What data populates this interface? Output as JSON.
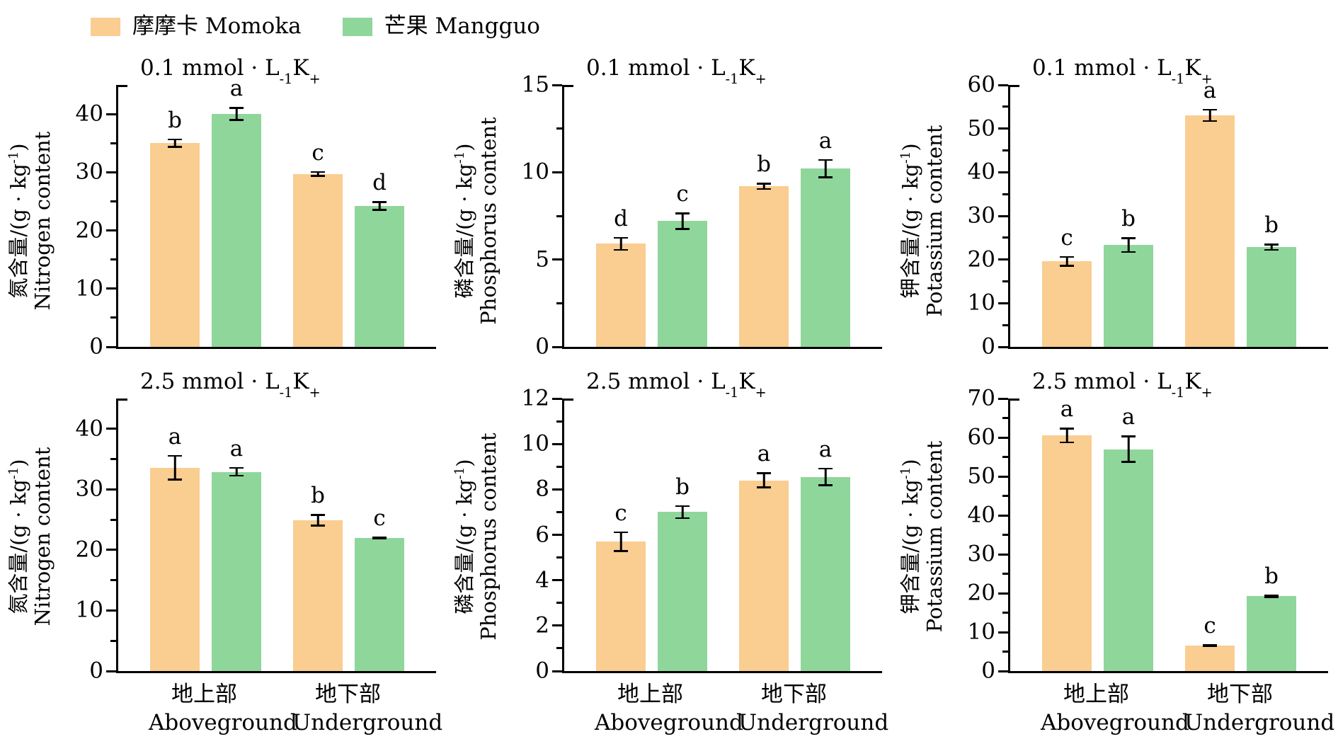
{
  "legend": {
    "items": [
      {
        "key": "momoka",
        "label": "摩摩卡 Momoka",
        "color": "#FACD91"
      },
      {
        "key": "mangguo",
        "label": "芒果 Mangguo",
        "color": "#8FD69B"
      }
    ]
  },
  "colors": {
    "momoka": "#FACD91",
    "mangguo": "#8FD69B",
    "axis": "#000000"
  },
  "chart_data": {
    "type": "bar",
    "grid": {
      "rows": 2,
      "cols": 3
    },
    "categories": [
      {
        "key": "aboveground",
        "zh": "地上部",
        "en": "Aboveground"
      },
      {
        "key": "underground",
        "zh": "地下部",
        "en": "Underground"
      }
    ],
    "panels": [
      {
        "id": "nitrogen-0.1",
        "title": {
          "base": "0.1 mmol · L",
          "sup1": "-1",
          "mid": " K",
          "sup2": "+"
        },
        "ylabel": {
          "zh_base": "氮含量/(g · kg",
          "zh_sup": "-1",
          "zh_end": ")",
          "en": "Nitrogen content"
        },
        "ylim": [
          0,
          45
        ],
        "yticks": [
          0,
          10,
          20,
          30,
          40
        ],
        "yminor_step": 5,
        "series": [
          {
            "key": "momoka",
            "name": "摩摩卡 Momoka",
            "values": [
              35.0,
              29.7
            ],
            "errors": [
              0.8,
              0.5
            ],
            "letters": [
              "b",
              "c"
            ]
          },
          {
            "key": "mangguo",
            "name": "芒果 Mangguo",
            "values": [
              40.0,
              24.2
            ],
            "errors": [
              1.2,
              0.8
            ],
            "letters": [
              "a",
              "d"
            ]
          }
        ]
      },
      {
        "id": "phosphorus-0.1",
        "title": {
          "base": "0.1 mmol · L",
          "sup1": "-1",
          "mid": " K",
          "sup2": "+"
        },
        "ylabel": {
          "zh_base": "磷含量/(g · kg",
          "zh_sup": "-1",
          "zh_end": ")",
          "en": "Phosphorus content"
        },
        "ylim": [
          0,
          15
        ],
        "yticks": [
          0,
          5,
          10,
          15
        ],
        "yminor_step": 2.5,
        "series": [
          {
            "key": "momoka",
            "name": "摩摩卡 Momoka",
            "values": [
              5.9,
              9.2
            ],
            "errors": [
              0.4,
              0.2
            ],
            "letters": [
              "d",
              "b"
            ]
          },
          {
            "key": "mangguo",
            "name": "芒果 Mangguo",
            "values": [
              7.2,
              10.2
            ],
            "errors": [
              0.5,
              0.55
            ],
            "letters": [
              "c",
              "a"
            ]
          }
        ]
      },
      {
        "id": "potassium-0.1",
        "title": {
          "base": "0.1 mmol · L",
          "sup1": "-1",
          "mid": " K",
          "sup2": "+"
        },
        "ylabel": {
          "zh_base": "钾含量/(g · kg",
          "zh_sup": "-1",
          "zh_end": ")",
          "en": "Potassium content"
        },
        "ylim": [
          0,
          60
        ],
        "yticks": [
          0,
          10,
          20,
          30,
          40,
          50,
          60
        ],
        "yminor_step": 5,
        "series": [
          {
            "key": "momoka",
            "name": "摩摩卡 Momoka",
            "values": [
              19.6,
              53.0
            ],
            "errors": [
              1.2,
              1.5
            ],
            "letters": [
              "c",
              "a"
            ]
          },
          {
            "key": "mangguo",
            "name": "芒果 Mangguo",
            "values": [
              23.3,
              22.8
            ],
            "errors": [
              1.8,
              0.8
            ],
            "letters": [
              "b",
              "b"
            ]
          }
        ]
      },
      {
        "id": "nitrogen-2.5",
        "title": {
          "base": "2.5 mmol · L",
          "sup1": "-1",
          "mid": " K",
          "sup2": "+"
        },
        "ylabel": {
          "zh_base": "氮含量/(g · kg",
          "zh_sup": "-1",
          "zh_end": ")",
          "en": "Nitrogen content"
        },
        "ylim": [
          0,
          45
        ],
        "yticks": [
          0,
          10,
          20,
          30,
          40
        ],
        "yminor_step": 5,
        "series": [
          {
            "key": "momoka",
            "name": "摩摩卡 Momoka",
            "values": [
              33.6,
              24.9
            ],
            "errors": [
              2.1,
              1.0
            ],
            "letters": [
              "a",
              "b"
            ]
          },
          {
            "key": "mangguo",
            "name": "芒果 Mangguo",
            "values": [
              32.9,
              22.0
            ],
            "errors": [
              0.8,
              0.2
            ],
            "letters": [
              "a",
              "c"
            ]
          }
        ]
      },
      {
        "id": "phosphorus-2.5",
        "title": {
          "base": "2.5 mmol · L",
          "sup1": "-1",
          "mid": " K",
          "sup2": "+"
        },
        "ylabel": {
          "zh_base": "磷含量/(g · kg",
          "zh_sup": "-1",
          "zh_end": ")",
          "en": "Phosphorus content"
        },
        "ylim": [
          0,
          12
        ],
        "yticks": [
          0,
          2,
          4,
          6,
          8,
          10,
          12
        ],
        "yminor_step": 1,
        "series": [
          {
            "key": "momoka",
            "name": "摩摩卡 Momoka",
            "values": [
              5.7,
              8.4
            ],
            "errors": [
              0.45,
              0.35
            ],
            "letters": [
              "c",
              "a"
            ]
          },
          {
            "key": "mangguo",
            "name": "芒果 Mangguo",
            "values": [
              7.0,
              8.55
            ],
            "errors": [
              0.3,
              0.4
            ],
            "letters": [
              "b",
              "a"
            ]
          }
        ]
      },
      {
        "id": "potassium-2.5",
        "title": {
          "base": "2.5 mmol · L",
          "sup1": "-1",
          "mid": " K",
          "sup2": "+"
        },
        "ylabel": {
          "zh_base": "钾含量/(g · kg",
          "zh_sup": "-1",
          "zh_end": ")",
          "en": "Potassium content"
        },
        "ylim": [
          0,
          70
        ],
        "yticks": [
          0,
          10,
          20,
          30,
          40,
          50,
          60,
          70
        ],
        "yminor_step": 5,
        "series": [
          {
            "key": "momoka",
            "name": "摩摩卡 Momoka",
            "values": [
              60.5,
              6.6
            ],
            "errors": [
              2.0,
              0.4
            ],
            "letters": [
              "a",
              "c"
            ]
          },
          {
            "key": "mangguo",
            "name": "芒果 Mangguo",
            "values": [
              57.0,
              19.2
            ],
            "errors": [
              3.5,
              0.4
            ],
            "letters": [
              "a",
              "b"
            ]
          }
        ]
      }
    ]
  }
}
